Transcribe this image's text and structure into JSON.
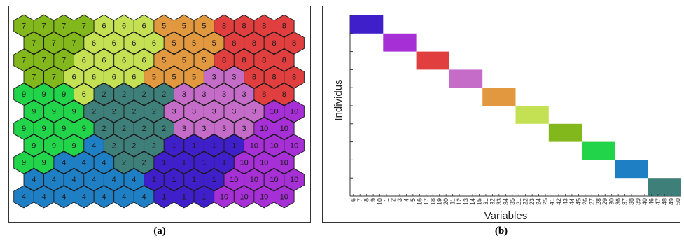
{
  "captions": {
    "a": "(a)",
    "b": "(b)"
  },
  "chart_data": [
    {
      "type": "heatmap",
      "subtype": "hexagonal-som-map",
      "title": "",
      "rows": [
        [
          "7",
          "7",
          "7",
          "7",
          "6",
          "6",
          "6",
          "5",
          "5",
          "5",
          "8",
          "8",
          "8",
          "8"
        ],
        [
          "7",
          "7",
          "7",
          "6",
          "6",
          "6",
          "6",
          "5",
          "5",
          "5",
          "8",
          "8",
          "8",
          "8"
        ],
        [
          "7",
          "7",
          "7",
          "6",
          "6",
          "6",
          "6",
          "5",
          "5",
          "5",
          "8",
          "8",
          "8",
          "8"
        ],
        [
          "7",
          "7",
          "6",
          "6",
          "6",
          "6",
          "5",
          "5",
          "5",
          "3",
          "3",
          "8",
          "8",
          "8"
        ],
        [
          "9",
          "9",
          "9",
          "6",
          "2",
          "2",
          "2",
          "2",
          "3",
          "3",
          "3",
          "3",
          "8",
          "8"
        ],
        [
          "9",
          "9",
          "9",
          "2",
          "2",
          "2",
          "2",
          "3",
          "3",
          "3",
          "3",
          "3",
          "10",
          "10"
        ],
        [
          "9",
          "9",
          "9",
          "9",
          "2",
          "2",
          "2",
          "2",
          "3",
          "3",
          "3",
          "3",
          "10",
          "10"
        ],
        [
          "9",
          "9",
          "9",
          "4",
          "2",
          "2",
          "2",
          "1",
          "1",
          "1",
          "1",
          "10",
          "10",
          "10"
        ],
        [
          "9",
          "9",
          "4",
          "4",
          "4",
          "2",
          "2",
          "1",
          "1",
          "1",
          "1",
          "10",
          "10",
          "10"
        ],
        [
          "4",
          "4",
          "4",
          "4",
          "4",
          "4",
          "1",
          "1",
          "1",
          "1",
          "10",
          "10",
          "10",
          "10"
        ],
        [
          "4",
          "4",
          "4",
          "4",
          "4",
          "4",
          "4",
          "1",
          "1",
          "1",
          "10",
          "10",
          "10",
          "10"
        ]
      ],
      "cluster_colors": {
        "1": "#3f1fc9",
        "2": "#3f7f7a",
        "3": "#c46cc8",
        "4": "#1f7fc4",
        "5": "#e1983f",
        "6": "#c4e154",
        "7": "#82b81b",
        "8": "#e13f3f",
        "9": "#22d44a",
        "10": "#a62fd6"
      }
    },
    {
      "type": "heatmap",
      "subtype": "block-diagonal",
      "xlabel": "Variables",
      "ylabel": "Individus",
      "x_tick_labels": [
        "6",
        "7",
        "8",
        "9",
        "10",
        "1",
        "2",
        "3",
        "4",
        "5",
        "16",
        "17",
        "18",
        "19",
        "20",
        "11",
        "12",
        "13",
        "14",
        "15",
        "31",
        "32",
        "33",
        "34",
        "35",
        "21",
        "22",
        "23",
        "24",
        "25",
        "41",
        "42",
        "43",
        "44",
        "45",
        "26",
        "27",
        "28",
        "29",
        "30",
        "36",
        "37",
        "38",
        "39",
        "40",
        "46",
        "47",
        "48",
        "49",
        "50"
      ],
      "y_tick_count": 10,
      "blocks": [
        {
          "variables": [
            "6",
            "7",
            "8",
            "9",
            "10"
          ],
          "color": "#3f1fc9"
        },
        {
          "variables": [
            "1",
            "2",
            "3",
            "4",
            "5"
          ],
          "color": "#a62fd6"
        },
        {
          "variables": [
            "16",
            "17",
            "18",
            "19",
            "20"
          ],
          "color": "#e13f3f"
        },
        {
          "variables": [
            "11",
            "12",
            "13",
            "14",
            "15"
          ],
          "color": "#c46cc8"
        },
        {
          "variables": [
            "31",
            "32",
            "33",
            "34",
            "35"
          ],
          "color": "#e1983f"
        },
        {
          "variables": [
            "21",
            "22",
            "23",
            "24",
            "25"
          ],
          "color": "#c4e154"
        },
        {
          "variables": [
            "41",
            "42",
            "43",
            "44",
            "45"
          ],
          "color": "#82b81b"
        },
        {
          "variables": [
            "26",
            "27",
            "28",
            "29",
            "30"
          ],
          "color": "#22d44a"
        },
        {
          "variables": [
            "36",
            "37",
            "38",
            "39",
            "40"
          ],
          "color": "#1f7fc4"
        },
        {
          "variables": [
            "46",
            "47",
            "48",
            "49",
            "50"
          ],
          "color": "#3f7f7a"
        }
      ]
    }
  ]
}
